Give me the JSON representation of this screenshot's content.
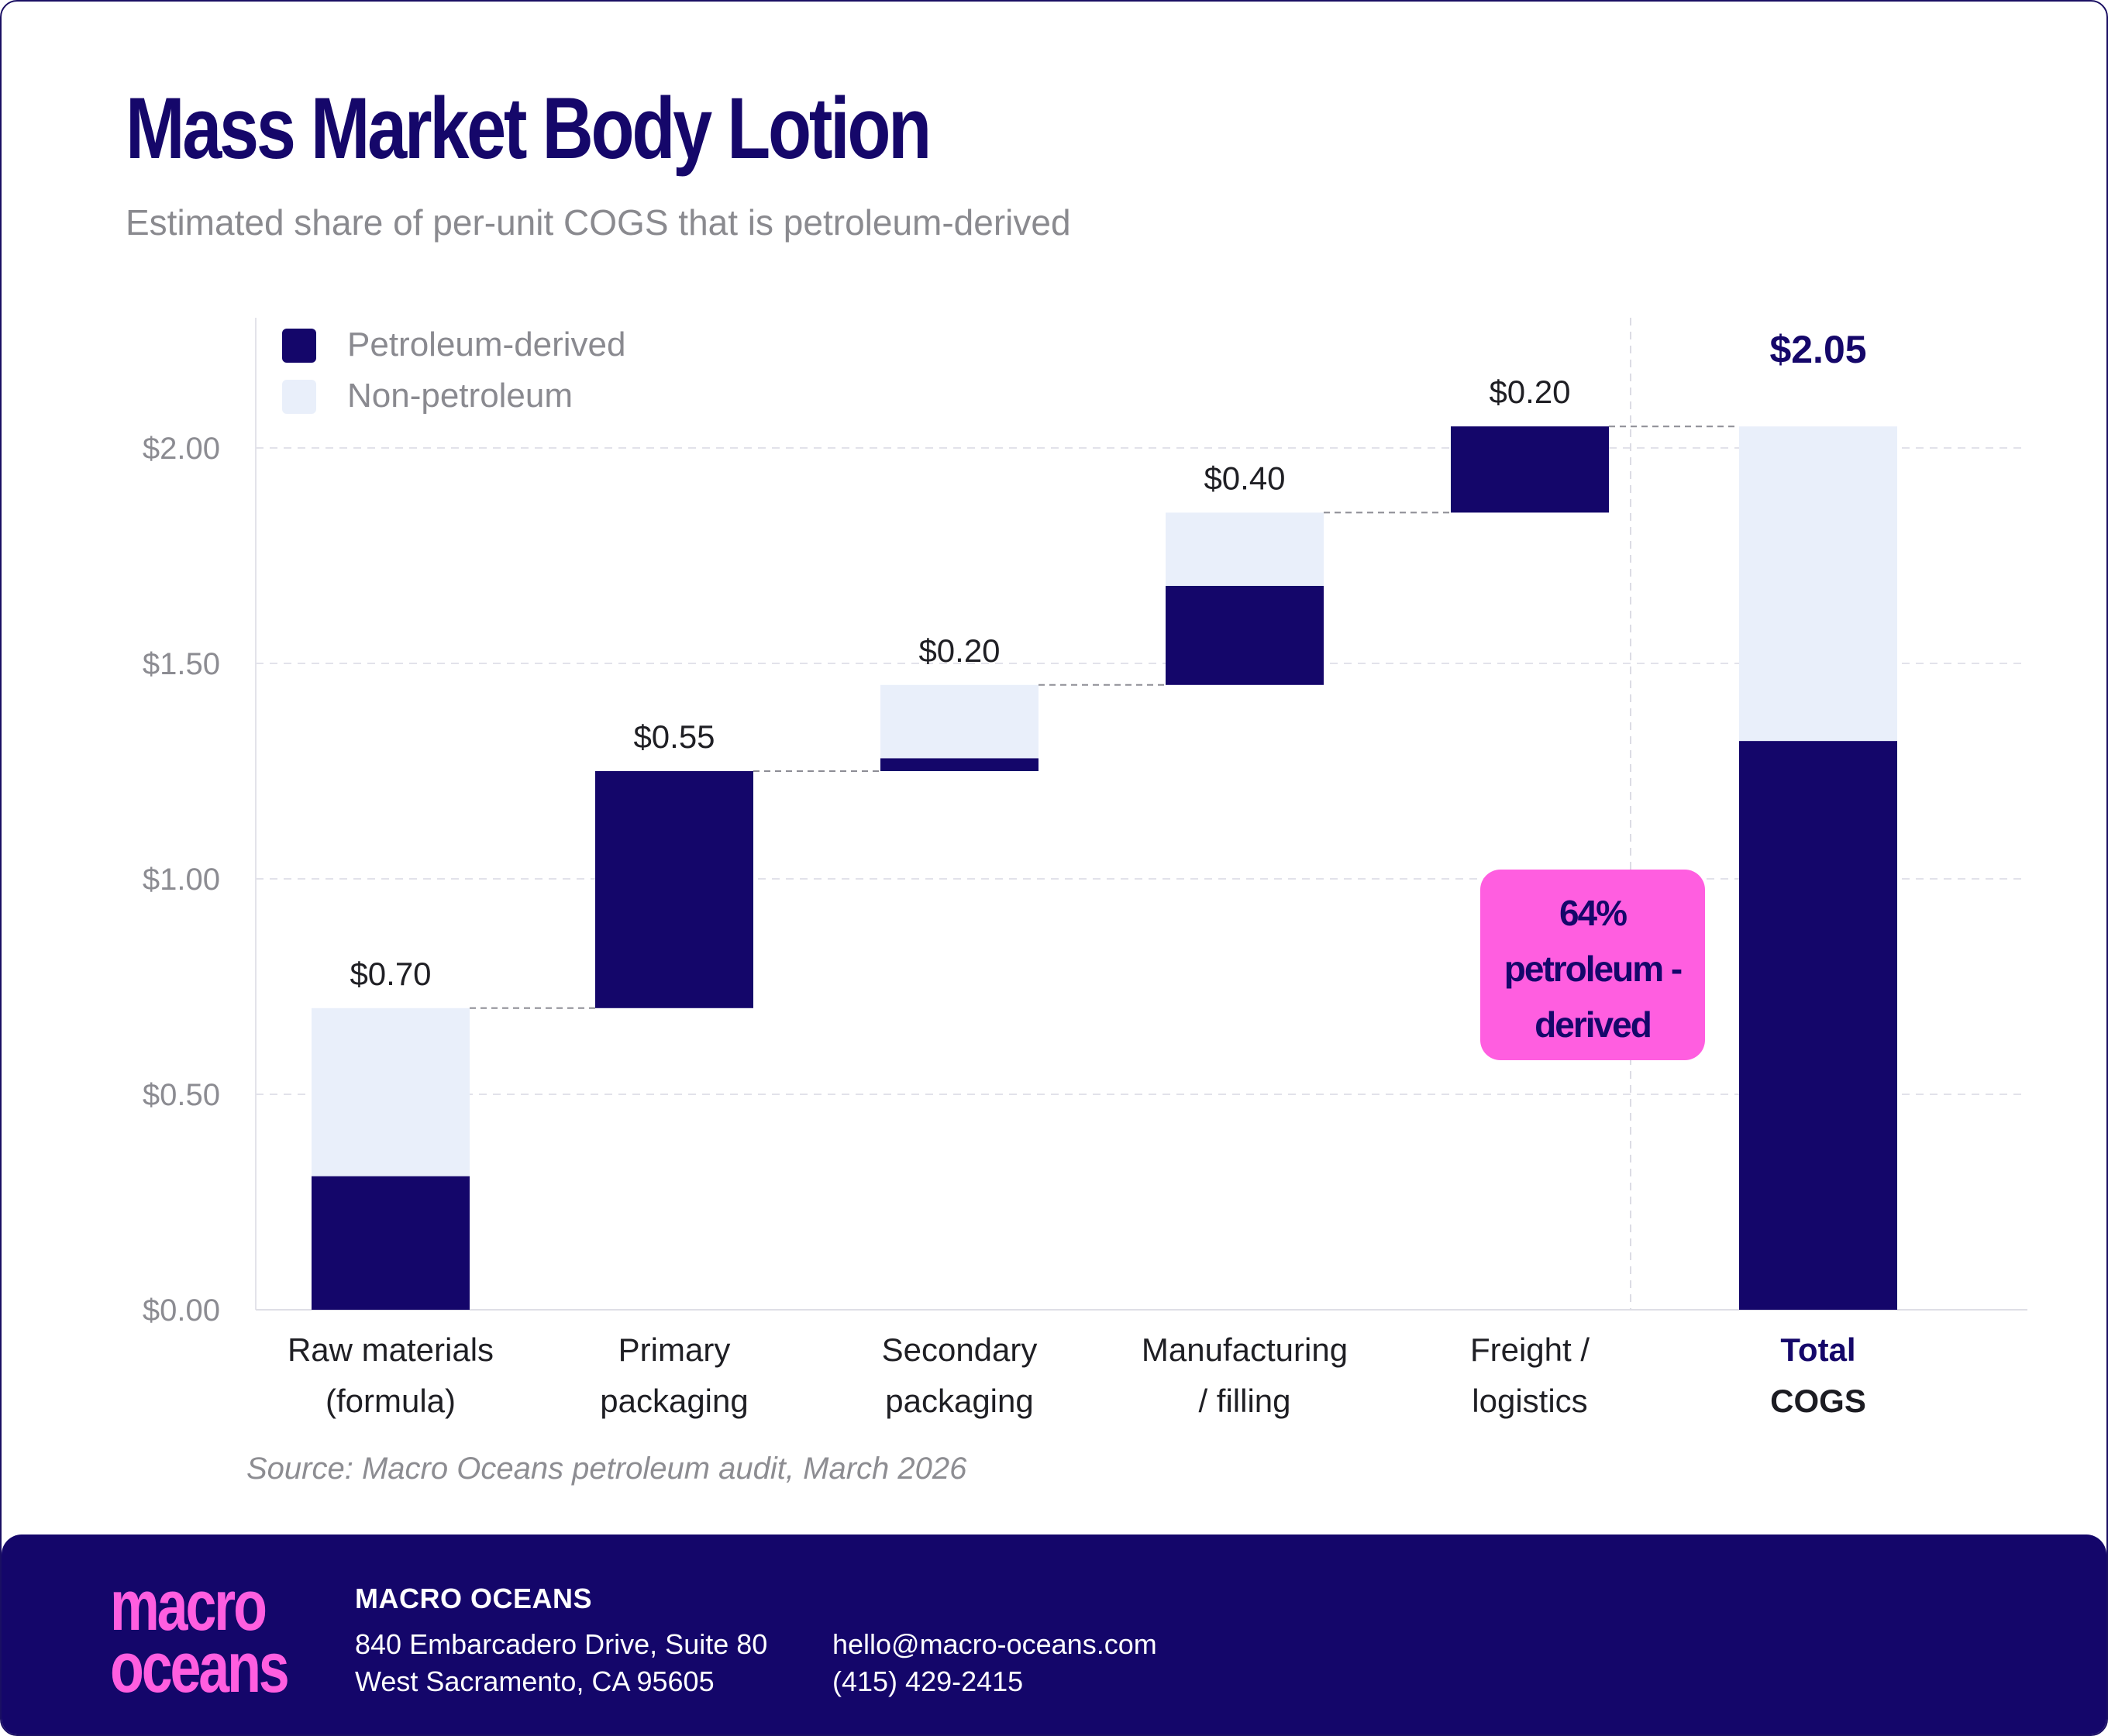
{
  "title": "Mass Market Body Lotion",
  "subtitle": "Estimated share of per-unit COGS that is petroleum-derived",
  "legend": {
    "petroleum": "Petroleum-derived",
    "non_petroleum": "Non-petroleum"
  },
  "colors": {
    "petroleum": "#14066a",
    "non_petroleum": "#e9effa",
    "callout_bg": "#ff5ee0",
    "title": "#15076a"
  },
  "chart_data": {
    "type": "bar",
    "subtype": "waterfall-stacked",
    "ylim": [
      0,
      2.3
    ],
    "yticks": [
      {
        "value": 0,
        "label": "$0.00"
      },
      {
        "value": 0.5,
        "label": "$0.50"
      },
      {
        "value": 1.0,
        "label": "$1.00"
      },
      {
        "value": 1.5,
        "label": "$1.50"
      },
      {
        "value": 2.0,
        "label": "$2.00"
      }
    ],
    "bars": [
      {
        "name": "raw-materials",
        "label_lines": [
          "Raw materials",
          "(formula)"
        ],
        "base": 0.0,
        "petroleum": 0.31,
        "non_petroleum": 0.39,
        "value_label": "$0.70",
        "total": false
      },
      {
        "name": "primary-packaging",
        "label_lines": [
          "Primary",
          "packaging"
        ],
        "base": 0.7,
        "petroleum": 0.55,
        "non_petroleum": 0.0,
        "value_label": "$0.55",
        "total": false
      },
      {
        "name": "secondary-packaging",
        "label_lines": [
          "Secondary",
          "packaging"
        ],
        "base": 1.25,
        "petroleum": 0.03,
        "non_petroleum": 0.17,
        "value_label": "$0.20",
        "total": false
      },
      {
        "name": "manufacturing-filling",
        "label_lines": [
          "Manufacturing",
          "/ filling"
        ],
        "base": 1.45,
        "petroleum": 0.23,
        "non_petroleum": 0.17,
        "value_label": "$0.40",
        "total": false
      },
      {
        "name": "freight-logistics",
        "label_lines": [
          "Freight /",
          "logistics"
        ],
        "base": 1.85,
        "petroleum": 0.2,
        "non_petroleum": 0.0,
        "value_label": "$0.20",
        "total": false
      },
      {
        "name": "total-cogs",
        "label_lines": [
          "Total",
          "COGS"
        ],
        "base": 0.0,
        "petroleum": 1.32,
        "non_petroleum": 0.73,
        "value_label": "$2.05",
        "total": true
      }
    ],
    "callout": {
      "lines": [
        "64%",
        "petroleum -",
        "derived"
      ]
    }
  },
  "source": "Source: Macro Oceans petroleum audit, March 2026",
  "footer": {
    "logo_lines": [
      "macro",
      "oceans"
    ],
    "company": "MACRO OCEANS",
    "address_line1": "840 Embarcadero Drive, Suite 80",
    "address_line2": "West Sacramento, CA 95605",
    "email": "hello@macro-oceans.com",
    "phone": "(415) 429-2415"
  }
}
